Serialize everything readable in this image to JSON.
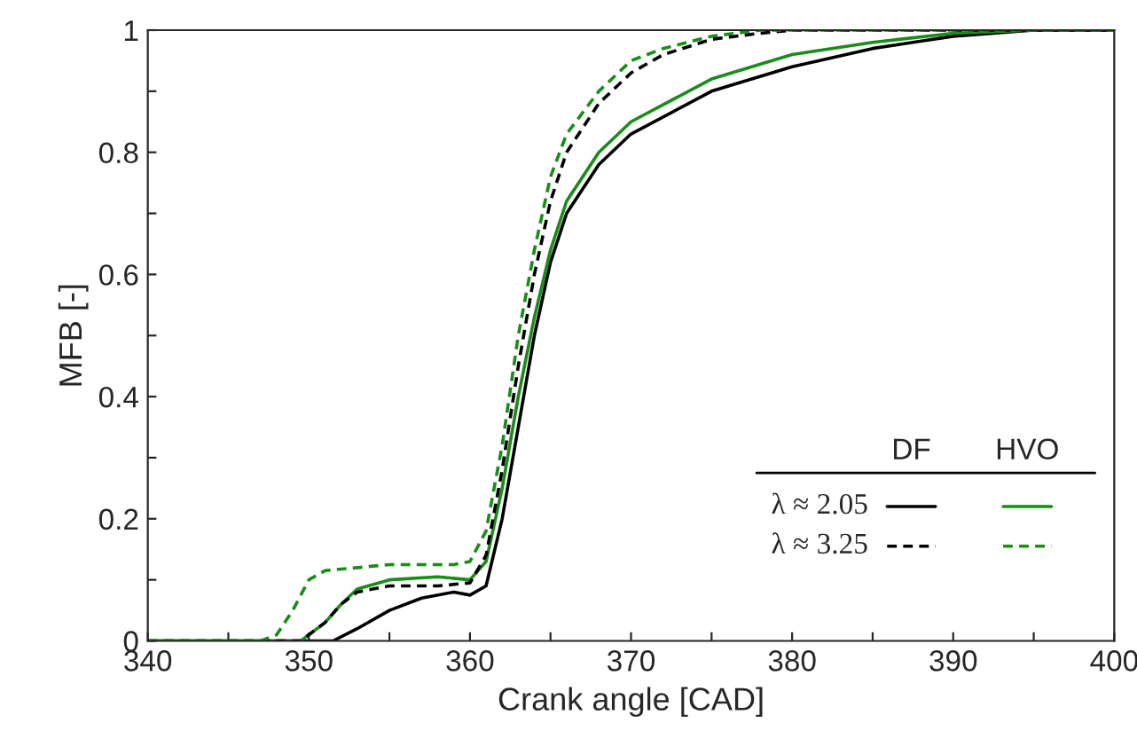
{
  "chart_data": {
    "type": "line",
    "xlabel": "Crank angle [CAD]",
    "ylabel": "MFB [-]",
    "xlim": [
      340,
      400
    ],
    "ylim": [
      0,
      1
    ],
    "xticks": [
      340,
      {
        "value": 345,
        "label": null
      },
      350,
      {
        "value": 355,
        "label": null
      },
      360,
      {
        "value": 365,
        "label": null
      },
      370,
      {
        "value": 375,
        "label": null
      },
      380,
      {
        "value": 385,
        "label": null
      },
      390,
      {
        "value": 395,
        "label": null
      },
      400
    ],
    "yticks": [
      0,
      {
        "value": 0.1,
        "label": null
      },
      0.2,
      {
        "value": 0.3,
        "label": null
      },
      0.4,
      {
        "value": 0.5,
        "label": null
      },
      0.6,
      {
        "value": 0.7,
        "label": null
      },
      0.8,
      {
        "value": 0.9,
        "label": null
      },
      1
    ],
    "grid": false,
    "legend": false,
    "annotations": [
      "DF",
      "HVO",
      "λ ≈ 2.05",
      "λ ≈ 3.25"
    ],
    "series": [
      {
        "color": "#000000",
        "line_style": "solid",
        "x": [
          340,
          351.5,
          353,
          355,
          357,
          359,
          360,
          361,
          362,
          363,
          364,
          365,
          366,
          368,
          370,
          375,
          380,
          385,
          390,
          395,
          400
        ],
        "values": [
          0,
          0,
          0.02,
          0.05,
          0.07,
          0.08,
          0.075,
          0.09,
          0.2,
          0.35,
          0.5,
          0.62,
          0.7,
          0.78,
          0.83,
          0.9,
          0.94,
          0.97,
          0.99,
          1,
          1
        ]
      },
      {
        "color": "#1a8c1a",
        "line_style": "solid",
        "x": [
          340,
          349.5,
          351,
          352,
          353,
          355,
          358,
          360,
          361,
          362,
          363,
          364,
          365,
          366,
          368,
          370,
          375,
          380,
          385,
          390,
          395,
          400
        ],
        "values": [
          0,
          0,
          0.03,
          0.06,
          0.085,
          0.1,
          0.105,
          0.1,
          0.13,
          0.25,
          0.4,
          0.53,
          0.64,
          0.72,
          0.8,
          0.85,
          0.92,
          0.96,
          0.98,
          0.995,
          1,
          1
        ]
      },
      {
        "color": "#000000",
        "line_style": "dashed",
        "x": [
          340,
          349.5,
          351,
          352,
          353,
          355,
          358,
          360,
          361,
          362,
          363,
          364,
          365,
          366,
          368,
          370,
          372,
          375,
          378,
          380,
          400
        ],
        "values": [
          0,
          0,
          0.03,
          0.06,
          0.08,
          0.09,
          0.09,
          0.095,
          0.14,
          0.28,
          0.45,
          0.6,
          0.72,
          0.8,
          0.88,
          0.93,
          0.96,
          0.985,
          0.995,
          1,
          1
        ]
      },
      {
        "color": "#1a8c1a",
        "line_style": "dashed",
        "x": [
          340,
          347,
          348,
          349,
          350,
          351,
          355,
          359,
          360,
          361,
          362,
          363,
          364,
          365,
          366,
          368,
          370,
          372,
          375,
          378,
          400
        ],
        "values": [
          0,
          0,
          0.01,
          0.05,
          0.1,
          0.115,
          0.125,
          0.125,
          0.13,
          0.18,
          0.32,
          0.5,
          0.64,
          0.76,
          0.83,
          0.9,
          0.95,
          0.97,
          0.99,
          1,
          1
        ]
      }
    ]
  }
}
